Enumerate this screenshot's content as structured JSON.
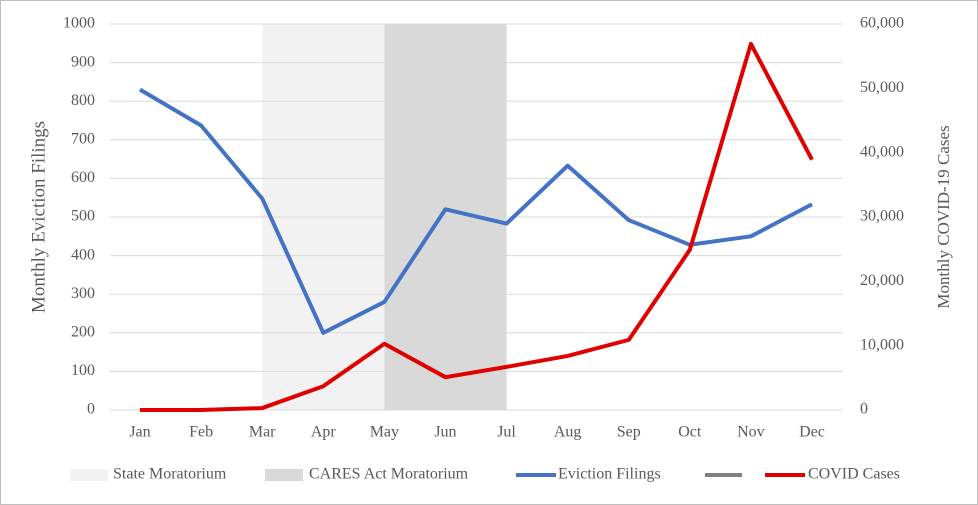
{
  "chart_data": {
    "type": "line",
    "categories": [
      "Jan",
      "Feb",
      "Mar",
      "Apr",
      "May",
      "Jun",
      "Jul",
      "Aug",
      "Sep",
      "Oct",
      "Nov",
      "Dec"
    ],
    "series": [
      {
        "name": "Eviction Filings",
        "color": "#4472c4",
        "values": [
          830,
          737,
          548,
          200,
          280,
          520,
          483,
          633,
          492,
          428,
          450,
          533
        ]
      },
      {
        "name": "COVID Cases",
        "color": "#e00000",
        "axis": "y2",
        "values": [
          0,
          0,
          300,
          3700,
          10300,
          5100,
          6700,
          8400,
          10900,
          24900,
          56900,
          38900
        ]
      }
    ],
    "shaded_regions": [
      {
        "name": "State Moratorium",
        "start": "Mar",
        "end": "May",
        "color": "#f2f2f2"
      },
      {
        "name": "CARES Act Moratorium",
        "start": "May",
        "end": "Jul",
        "color": "#d9d9d9"
      }
    ],
    "ylabel": "Monthly Eviction Filings",
    "y2label": "Monthly COVID-19 Cases",
    "ylim": [
      0,
      1000
    ],
    "yticks": [
      0,
      100,
      200,
      300,
      400,
      500,
      600,
      700,
      800,
      900,
      1000
    ],
    "y2lim": [
      0,
      60000
    ],
    "y2ticks": [
      0,
      {
        "value": 10000,
        "label": "10,000"
      },
      {
        "value": 20000,
        "label": "20,000"
      },
      {
        "value": 30000,
        "label": "30,000"
      },
      {
        "value": 40000,
        "label": "40,000"
      },
      {
        "value": 50000,
        "label": "50,000"
      },
      {
        "value": 60000,
        "label": "60,000"
      }
    ],
    "grid": true,
    "legend": "bottom"
  }
}
